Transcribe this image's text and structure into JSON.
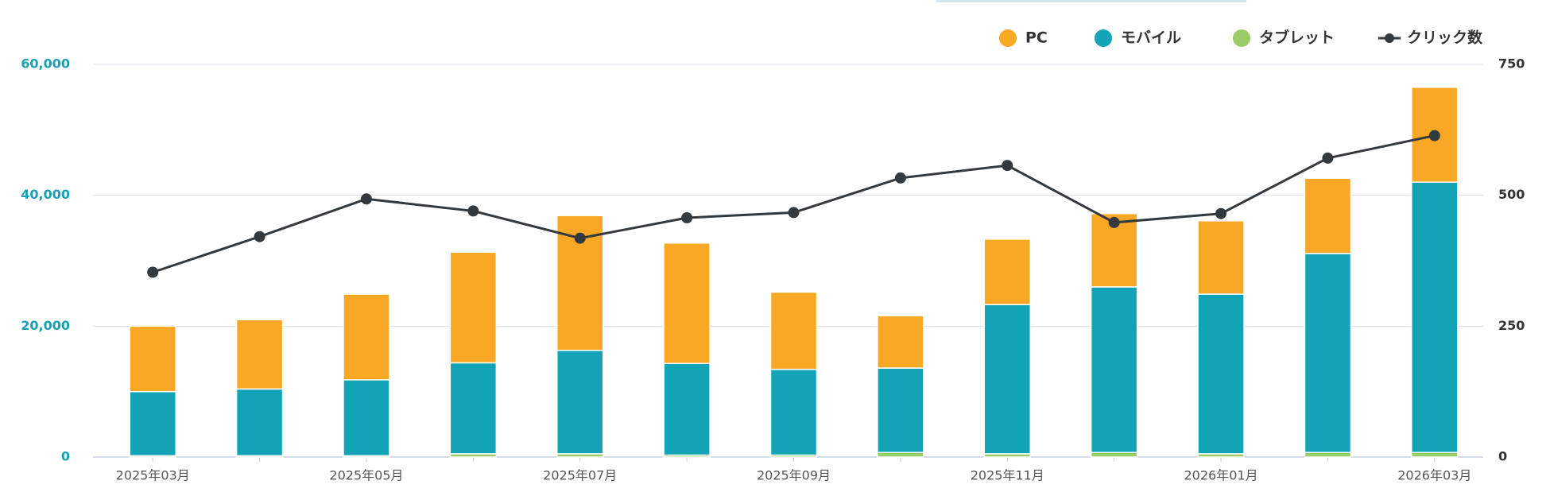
{
  "chart_data": {
    "type": "bar",
    "stacked": true,
    "categories": [
      "2025年03月",
      null,
      "2025年05月",
      null,
      "2025年07月",
      null,
      "2025年09月",
      null,
      "2025年11月",
      null,
      "2026年01月",
      null,
      "2026年03月"
    ],
    "series": [
      {
        "name": "PC",
        "color": "#f9a825",
        "values": [
          10000,
          10600,
          13100,
          16900,
          20600,
          18400,
          11800,
          8000,
          10000,
          11200,
          11200,
          11500,
          14500
        ]
      },
      {
        "name": "モバイル",
        "color": "#12a4b6",
        "values": [
          9800,
          10200,
          11600,
          13900,
          15800,
          14000,
          13100,
          12900,
          22800,
          25300,
          24400,
          30400,
          41300
        ]
      },
      {
        "name": "タブレット",
        "color": "#9ccc65",
        "values": [
          200,
          200,
          200,
          500,
          500,
          300,
          300,
          700,
          500,
          700,
          500,
          700,
          700
        ]
      },
      {
        "name": "クリック数",
        "color": "#333a3f",
        "type": "line",
        "axis": "y2",
        "values": [
          353,
          421,
          493,
          470,
          418,
          457,
          467,
          533,
          557,
          448,
          465,
          571,
          614
        ]
      }
    ],
    "ylim": [
      0,
      60000
    ],
    "yticks": [
      0,
      {
        "value": 20000,
        "label": "20,000"
      },
      {
        "value": 40000,
        "label": "40,000"
      },
      {
        "value": 60000,
        "label": "60,000"
      }
    ],
    "y2lim": [
      0,
      750
    ],
    "y2ticks": [
      0,
      250,
      500,
      750
    ],
    "grid": true,
    "legend": "top-right"
  }
}
